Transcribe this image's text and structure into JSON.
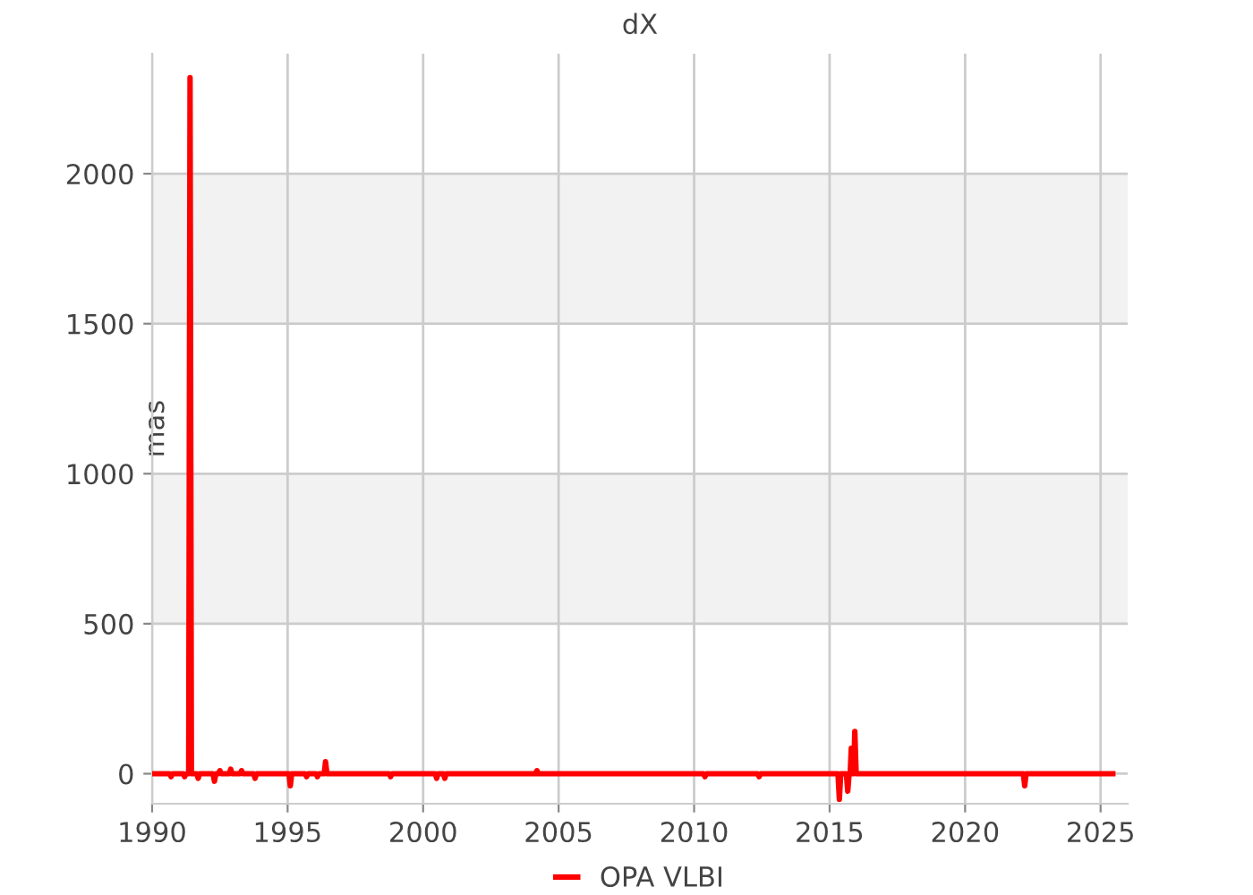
{
  "chart_data": {
    "type": "line",
    "title": "dX",
    "ylabel": "mas",
    "series": [
      {
        "name": "OPA VLBI",
        "color": "#ff0000",
        "x": [
          1990.0,
          1990.65,
          1990.7,
          1990.75,
          1991.15,
          1991.2,
          1991.25,
          1991.35,
          1991.4,
          1991.45,
          1991.65,
          1991.7,
          1991.75,
          1992.25,
          1992.3,
          1992.35,
          1992.45,
          1992.5,
          1992.55,
          1992.85,
          1992.9,
          1992.95,
          1993.25,
          1993.3,
          1993.35,
          1993.75,
          1993.8,
          1993.85,
          1995.05,
          1995.1,
          1995.15,
          1995.65,
          1995.7,
          1995.75,
          1996.05,
          1996.1,
          1996.15,
          1996.35,
          1996.4,
          1996.45,
          1998.75,
          1998.8,
          1998.85,
          2000.45,
          2000.5,
          2000.55,
          2000.75,
          2000.8,
          2000.85,
          2004.15,
          2004.2,
          2004.25,
          2010.35,
          2010.4,
          2010.45,
          2012.35,
          2012.4,
          2012.45,
          2015.31,
          2015.36,
          2015.41,
          2015.62,
          2015.67,
          2015.72,
          2015.76,
          2015.8,
          2015.85,
          2015.89,
          2015.93,
          2015.98,
          2022.15,
          2022.2,
          2022.25,
          2025.45
        ],
        "values": [
          0,
          0,
          -10,
          0,
          0,
          -10,
          0,
          0,
          2320,
          0,
          0,
          -15,
          0,
          0,
          -25,
          0,
          0,
          10,
          0,
          0,
          15,
          0,
          0,
          10,
          0,
          0,
          -15,
          0,
          0,
          -40,
          0,
          0,
          -10,
          0,
          0,
          -10,
          0,
          0,
          40,
          0,
          0,
          -10,
          0,
          0,
          -15,
          0,
          0,
          -15,
          0,
          0,
          10,
          0,
          0,
          -10,
          0,
          0,
          -10,
          0,
          0,
          -85,
          0,
          0,
          -58,
          0,
          0,
          85,
          0,
          0,
          141,
          0,
          0,
          -40,
          0,
          0
        ]
      }
    ],
    "xlim": [
      1990,
      2026
    ],
    "xticks": [
      1990,
      1995,
      2000,
      2005,
      2010,
      2015,
      2020,
      2025
    ],
    "ylim": [
      -100,
      2400
    ],
    "yticks": [
      0,
      500,
      1000,
      1500,
      2000
    ],
    "bands": [
      {
        "axis": "y",
        "from": 500,
        "to": 1000,
        "color": "#f2f2f2"
      },
      {
        "axis": "y",
        "from": 1500,
        "to": 2000,
        "color": "#f2f2f2"
      }
    ],
    "grid": true,
    "legend": "bottom",
    "marker": "none",
    "line_style": "solid"
  }
}
